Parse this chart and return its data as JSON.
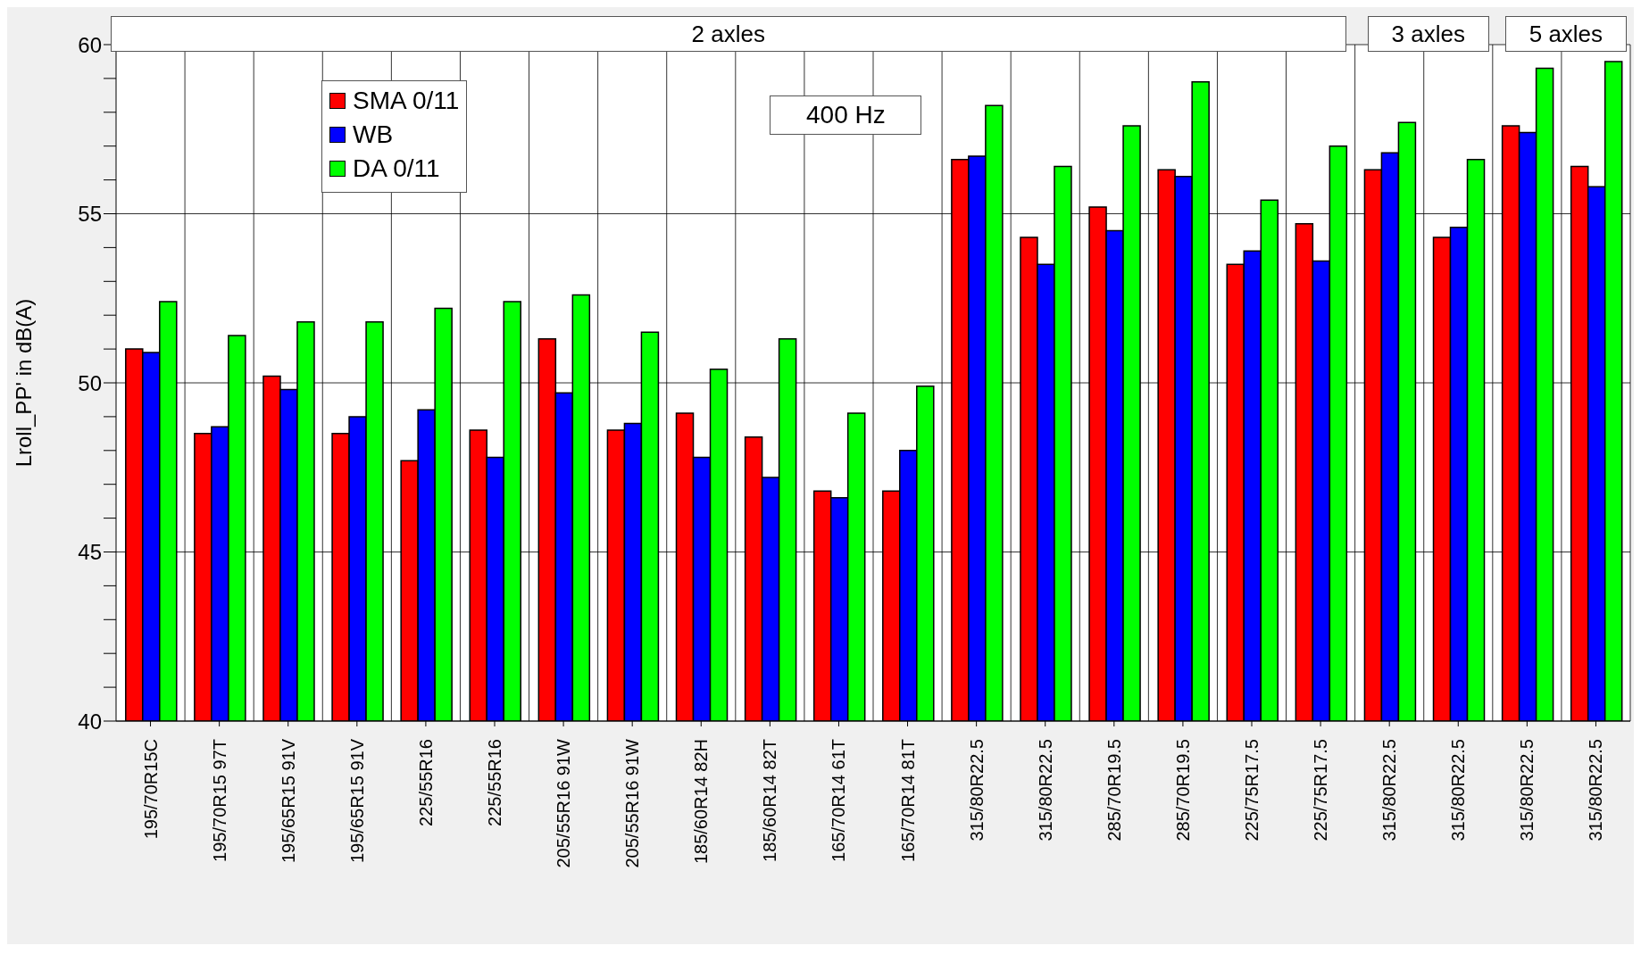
{
  "chart_data": {
    "type": "bar",
    "ylabel": "Lroll_PP' in dB(A)",
    "categories": [
      "195/70R15C",
      "195/70R15 97T",
      "195/65R15 91V",
      "195/65R15 91V",
      "225/55R16",
      "225/55R16",
      "205/55R16 91W",
      "205/55R16 91W",
      "185/60R14 82H",
      "185/60R14 82T",
      "165/70R14 61T",
      "165/70R14 81T",
      "315/80R22.5",
      "315/80R22.5",
      "285/70R19.5",
      "285/70R19.5",
      "225/75R17.5",
      "225/75R17.5",
      "315/80R22.5",
      "315/80R22.5",
      "315/80R22.5",
      "315/80R22.5"
    ],
    "series": [
      {
        "name": "SMA 0/11",
        "color": "#ff0000",
        "values": [
          51.0,
          48.5,
          50.2,
          48.5,
          47.7,
          48.6,
          51.3,
          48.6,
          49.1,
          48.4,
          46.8,
          46.8,
          56.6,
          54.3,
          55.2,
          56.3,
          53.5,
          54.7,
          56.3,
          54.3,
          57.6,
          56.4
        ]
      },
      {
        "name": "WB",
        "color": "#0000ff",
        "values": [
          50.9,
          48.7,
          49.8,
          49.0,
          49.2,
          47.8,
          49.7,
          48.8,
          47.8,
          47.2,
          46.6,
          48.0,
          56.7,
          53.5,
          54.5,
          56.1,
          53.9,
          53.6,
          56.8,
          54.6,
          57.4,
          55.8
        ]
      },
      {
        "name": "DA 0/11",
        "color": "#00ff00",
        "values": [
          52.4,
          51.4,
          51.8,
          51.8,
          52.2,
          52.4,
          52.6,
          51.5,
          50.4,
          51.3,
          49.1,
          49.9,
          58.2,
          56.4,
          57.6,
          58.9,
          55.4,
          57.0,
          57.7,
          56.6,
          59.3,
          59.5
        ]
      }
    ],
    "ylim": [
      40,
      60
    ],
    "yticks": [
      40,
      {
        "value": 41,
        "label": null
      },
      {
        "value": 42,
        "label": null
      },
      {
        "value": 43,
        "label": null
      },
      {
        "value": 44,
        "label": null
      },
      45,
      {
        "value": 46,
        "label": null
      },
      {
        "value": 47,
        "label": null
      },
      {
        "value": 48,
        "label": null
      },
      {
        "value": 49,
        "label": null
      },
      50,
      {
        "value": 51,
        "label": null
      },
      {
        "value": 52,
        "label": null
      },
      {
        "value": 53,
        "label": null
      },
      {
        "value": 54,
        "label": null
      },
      55,
      {
        "value": 56,
        "label": null
      },
      {
        "value": 57,
        "label": null
      },
      {
        "value": 58,
        "label": null
      },
      {
        "value": 59,
        "label": null
      },
      60
    ],
    "annotations": [
      "2 axles",
      "3 axles",
      "5 axles",
      "400 Hz"
    ],
    "grid": true,
    "legend": "top left"
  }
}
